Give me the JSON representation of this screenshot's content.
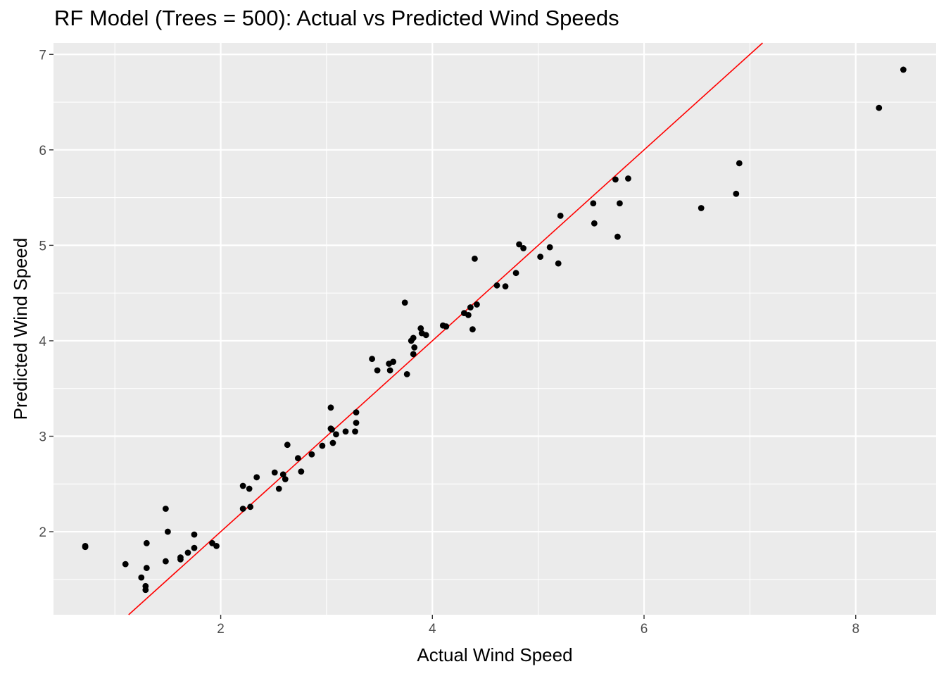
{
  "chart_data": {
    "type": "scatter",
    "title": "RF Model (Trees = 500): Actual vs Predicted Wind Speeds",
    "xlabel": "Actual Wind Speed",
    "ylabel": "Predicted Wind Speed",
    "xlim": [
      0.42,
      8.76
    ],
    "ylim": [
      1.13,
      7.12
    ],
    "xticks": [
      2,
      4,
      6,
      8
    ],
    "yticks": [
      2,
      3,
      4,
      5,
      6,
      7
    ],
    "grid": true,
    "legend": "none",
    "background_color": "#ebebeb",
    "grid_color": "#ffffff",
    "point_color": "#000000",
    "reference_line": {
      "label": "y = x",
      "slope": 1,
      "intercept": 0,
      "color": "#ff0000"
    },
    "points": [
      [
        0.72,
        1.84
      ],
      [
        0.72,
        1.85
      ],
      [
        1.1,
        1.66
      ],
      [
        1.25,
        1.52
      ],
      [
        1.29,
        1.43
      ],
      [
        1.29,
        1.39
      ],
      [
        1.3,
        1.62
      ],
      [
        1.3,
        1.88
      ],
      [
        1.48,
        2.24
      ],
      [
        1.48,
        1.69
      ],
      [
        1.5,
        2.0
      ],
      [
        1.62,
        1.71
      ],
      [
        1.62,
        1.73
      ],
      [
        1.69,
        1.78
      ],
      [
        1.75,
        1.83
      ],
      [
        1.75,
        1.97
      ],
      [
        1.92,
        1.88
      ],
      [
        1.96,
        1.85
      ],
      [
        2.21,
        2.48
      ],
      [
        2.21,
        2.24
      ],
      [
        2.27,
        2.45
      ],
      [
        2.28,
        2.26
      ],
      [
        2.34,
        2.57
      ],
      [
        2.51,
        2.62
      ],
      [
        2.55,
        2.45
      ],
      [
        2.59,
        2.6
      ],
      [
        2.61,
        2.55
      ],
      [
        2.63,
        2.91
      ],
      [
        2.73,
        2.77
      ],
      [
        2.76,
        2.63
      ],
      [
        2.86,
        2.81
      ],
      [
        2.96,
        2.9
      ],
      [
        3.04,
        3.3
      ],
      [
        3.04,
        3.08
      ],
      [
        3.05,
        3.07
      ],
      [
        3.06,
        2.93
      ],
      [
        3.09,
        3.02
      ],
      [
        3.18,
        3.05
      ],
      [
        3.27,
        3.05
      ],
      [
        3.28,
        3.25
      ],
      [
        3.28,
        3.14
      ],
      [
        3.43,
        3.81
      ],
      [
        3.48,
        3.69
      ],
      [
        3.59,
        3.76
      ],
      [
        3.6,
        3.69
      ],
      [
        3.63,
        3.78
      ],
      [
        3.74,
        4.4
      ],
      [
        3.76,
        3.65
      ],
      [
        3.8,
        4.0
      ],
      [
        3.82,
        4.03
      ],
      [
        3.82,
        3.86
      ],
      [
        3.83,
        3.93
      ],
      [
        3.89,
        4.13
      ],
      [
        3.9,
        4.08
      ],
      [
        3.94,
        4.06
      ],
      [
        4.1,
        4.16
      ],
      [
        4.13,
        4.15
      ],
      [
        4.3,
        4.29
      ],
      [
        4.34,
        4.27
      ],
      [
        4.36,
        4.35
      ],
      [
        4.38,
        4.12
      ],
      [
        4.4,
        4.86
      ],
      [
        4.42,
        4.38
      ],
      [
        4.61,
        4.58
      ],
      [
        4.69,
        4.57
      ],
      [
        4.79,
        4.71
      ],
      [
        4.82,
        5.01
      ],
      [
        4.86,
        4.97
      ],
      [
        5.02,
        4.88
      ],
      [
        5.11,
        4.98
      ],
      [
        5.19,
        4.81
      ],
      [
        5.21,
        5.31
      ],
      [
        5.52,
        5.44
      ],
      [
        5.53,
        5.23
      ],
      [
        5.73,
        5.69
      ],
      [
        5.75,
        5.09
      ],
      [
        5.77,
        5.44
      ],
      [
        5.85,
        5.7
      ],
      [
        6.54,
        5.39
      ],
      [
        6.87,
        5.54
      ],
      [
        6.9,
        5.86
      ],
      [
        8.22,
        6.44
      ],
      [
        8.45,
        6.84
      ]
    ]
  }
}
